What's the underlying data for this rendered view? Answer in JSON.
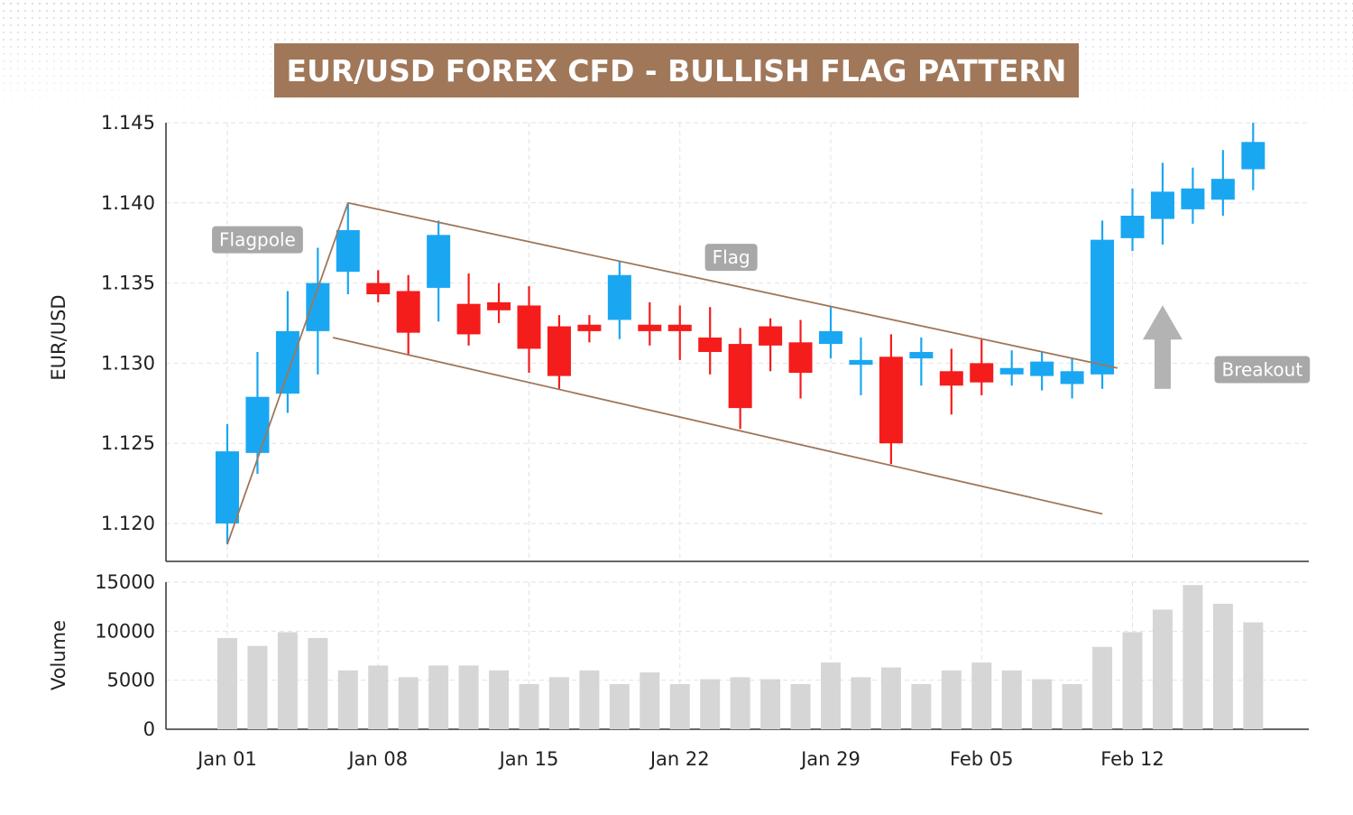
{
  "title": "EUR/USD FOREX CFD - BULLISH FLAG PATTERN",
  "colors": {
    "title_bg": "#a07759",
    "bull": "#1aa7f2",
    "bear": "#f51c1c",
    "volume": "#d6d6d6",
    "pattern_line": "#a07759",
    "annotation_bg": "#a8a8a8",
    "arrow": "#b3b3b3"
  },
  "chart_data": {
    "type": "candlestick",
    "title": "EUR/USD FOREX CFD - BULLISH FLAG PATTERN",
    "price_axis": {
      "ylabel": "EUR/USD",
      "ylim": [
        1.118,
        1.146
      ],
      "ticks": [
        "1.120",
        "1.125",
        "1.130",
        "1.135",
        "1.140",
        "1.145"
      ]
    },
    "volume_axis": {
      "ylabel": "Volume",
      "ylim": [
        0,
        15000
      ],
      "ticks": [
        "0",
        "5000",
        "10000",
        "15000"
      ]
    },
    "x_ticks": [
      {
        "label": "Jan 01",
        "index": 0
      },
      {
        "label": "Jan 08",
        "index": 5
      },
      {
        "label": "Jan 15",
        "index": 10
      },
      {
        "label": "Jan 22",
        "index": 15
      },
      {
        "label": "Jan 29",
        "index": 20
      },
      {
        "label": "Feb 05",
        "index": 25
      },
      {
        "label": "Feb 12",
        "index": 30
      }
    ],
    "candles": [
      {
        "o": 1.12,
        "h": 1.1262,
        "l": 1.1187,
        "c": 1.1245
      },
      {
        "o": 1.1244,
        "h": 1.1307,
        "l": 1.1231,
        "c": 1.1279
      },
      {
        "o": 1.1281,
        "h": 1.1345,
        "l": 1.1269,
        "c": 1.132
      },
      {
        "o": 1.132,
        "h": 1.1372,
        "l": 1.1293,
        "c": 1.135
      },
      {
        "o": 1.1357,
        "h": 1.14,
        "l": 1.1343,
        "c": 1.1383
      },
      {
        "o": 1.135,
        "h": 1.1358,
        "l": 1.1338,
        "c": 1.1343
      },
      {
        "o": 1.1345,
        "h": 1.1355,
        "l": 1.1305,
        "c": 1.1319
      },
      {
        "o": 1.1347,
        "h": 1.1389,
        "l": 1.1326,
        "c": 1.138
      },
      {
        "o": 1.1337,
        "h": 1.1356,
        "l": 1.1311,
        "c": 1.1318
      },
      {
        "o": 1.1338,
        "h": 1.135,
        "l": 1.1325,
        "c": 1.1333
      },
      {
        "o": 1.1336,
        "h": 1.1348,
        "l": 1.1294,
        "c": 1.1309
      },
      {
        "o": 1.1323,
        "h": 1.133,
        "l": 1.1284,
        "c": 1.1292
      },
      {
        "o": 1.1324,
        "h": 1.133,
        "l": 1.1313,
        "c": 1.132
      },
      {
        "o": 1.1327,
        "h": 1.1364,
        "l": 1.1315,
        "c": 1.1355
      },
      {
        "o": 1.1324,
        "h": 1.1338,
        "l": 1.1311,
        "c": 1.132
      },
      {
        "o": 1.1324,
        "h": 1.1336,
        "l": 1.1302,
        "c": 1.132
      },
      {
        "o": 1.1316,
        "h": 1.1335,
        "l": 1.1293,
        "c": 1.1307
      },
      {
        "o": 1.1312,
        "h": 1.1322,
        "l": 1.1259,
        "c": 1.1272
      },
      {
        "o": 1.1323,
        "h": 1.1328,
        "l": 1.1295,
        "c": 1.1311
      },
      {
        "o": 1.1313,
        "h": 1.1327,
        "l": 1.1278,
        "c": 1.1294
      },
      {
        "o": 1.1312,
        "h": 1.1335,
        "l": 1.1303,
        "c": 1.132
      },
      {
        "o": 1.1299,
        "h": 1.1316,
        "l": 1.128,
        "c": 1.1302
      },
      {
        "o": 1.1304,
        "h": 1.1318,
        "l": 1.1237,
        "c": 1.125
      },
      {
        "o": 1.1303,
        "h": 1.1316,
        "l": 1.1286,
        "c": 1.1307
      },
      {
        "o": 1.1295,
        "h": 1.1309,
        "l": 1.1268,
        "c": 1.1286
      },
      {
        "o": 1.13,
        "h": 1.1315,
        "l": 1.128,
        "c": 1.1288
      },
      {
        "o": 1.1293,
        "h": 1.1308,
        "l": 1.1286,
        "c": 1.1297
      },
      {
        "o": 1.1292,
        "h": 1.1307,
        "l": 1.1283,
        "c": 1.1301
      },
      {
        "o": 1.1287,
        "h": 1.1303,
        "l": 1.1278,
        "c": 1.1295
      },
      {
        "o": 1.1293,
        "h": 1.1389,
        "l": 1.1284,
        "c": 1.1377
      },
      {
        "o": 1.1378,
        "h": 1.1409,
        "l": 1.137,
        "c": 1.1392
      },
      {
        "o": 1.139,
        "h": 1.1425,
        "l": 1.1374,
        "c": 1.1407
      },
      {
        "o": 1.1396,
        "h": 1.1422,
        "l": 1.1387,
        "c": 1.1409
      },
      {
        "o": 1.1402,
        "h": 1.1433,
        "l": 1.1392,
        "c": 1.1415
      },
      {
        "o": 1.1421,
        "h": 1.145,
        "l": 1.1408,
        "c": 1.1438
      }
    ],
    "volume": [
      9300,
      8500,
      9900,
      9300,
      6000,
      6500,
      5300,
      6500,
      6500,
      6000,
      4600,
      5300,
      6000,
      4600,
      5800,
      4600,
      5100,
      5300,
      5100,
      4600,
      6800,
      5300,
      6300,
      4600,
      6000,
      6800,
      6000,
      5100,
      4600,
      8400,
      9900,
      12200,
      14700,
      12800,
      10900
    ],
    "pattern_lines": [
      {
        "name": "Flagpole",
        "from": [
          0,
          1.1187
        ],
        "to": [
          4,
          1.14
        ]
      },
      {
        "name": "Flag upper",
        "from": [
          4,
          1.14
        ],
        "to": [
          29.5,
          1.1297
        ]
      },
      {
        "name": "Flag lower",
        "from": [
          3.5,
          1.1316
        ],
        "to": [
          29,
          1.1206
        ]
      }
    ],
    "annotations": [
      {
        "text": "Flagpole",
        "index": 1,
        "y": 1.1377
      },
      {
        "text": "Flag",
        "index": 16.7,
        "y": 1.1366
      },
      {
        "text": "Breakout",
        "index": 34.3,
        "y": 1.1296
      }
    ],
    "breakout_arrow": {
      "index": 31,
      "from": 1.1284,
      "to": 1.1326
    }
  }
}
